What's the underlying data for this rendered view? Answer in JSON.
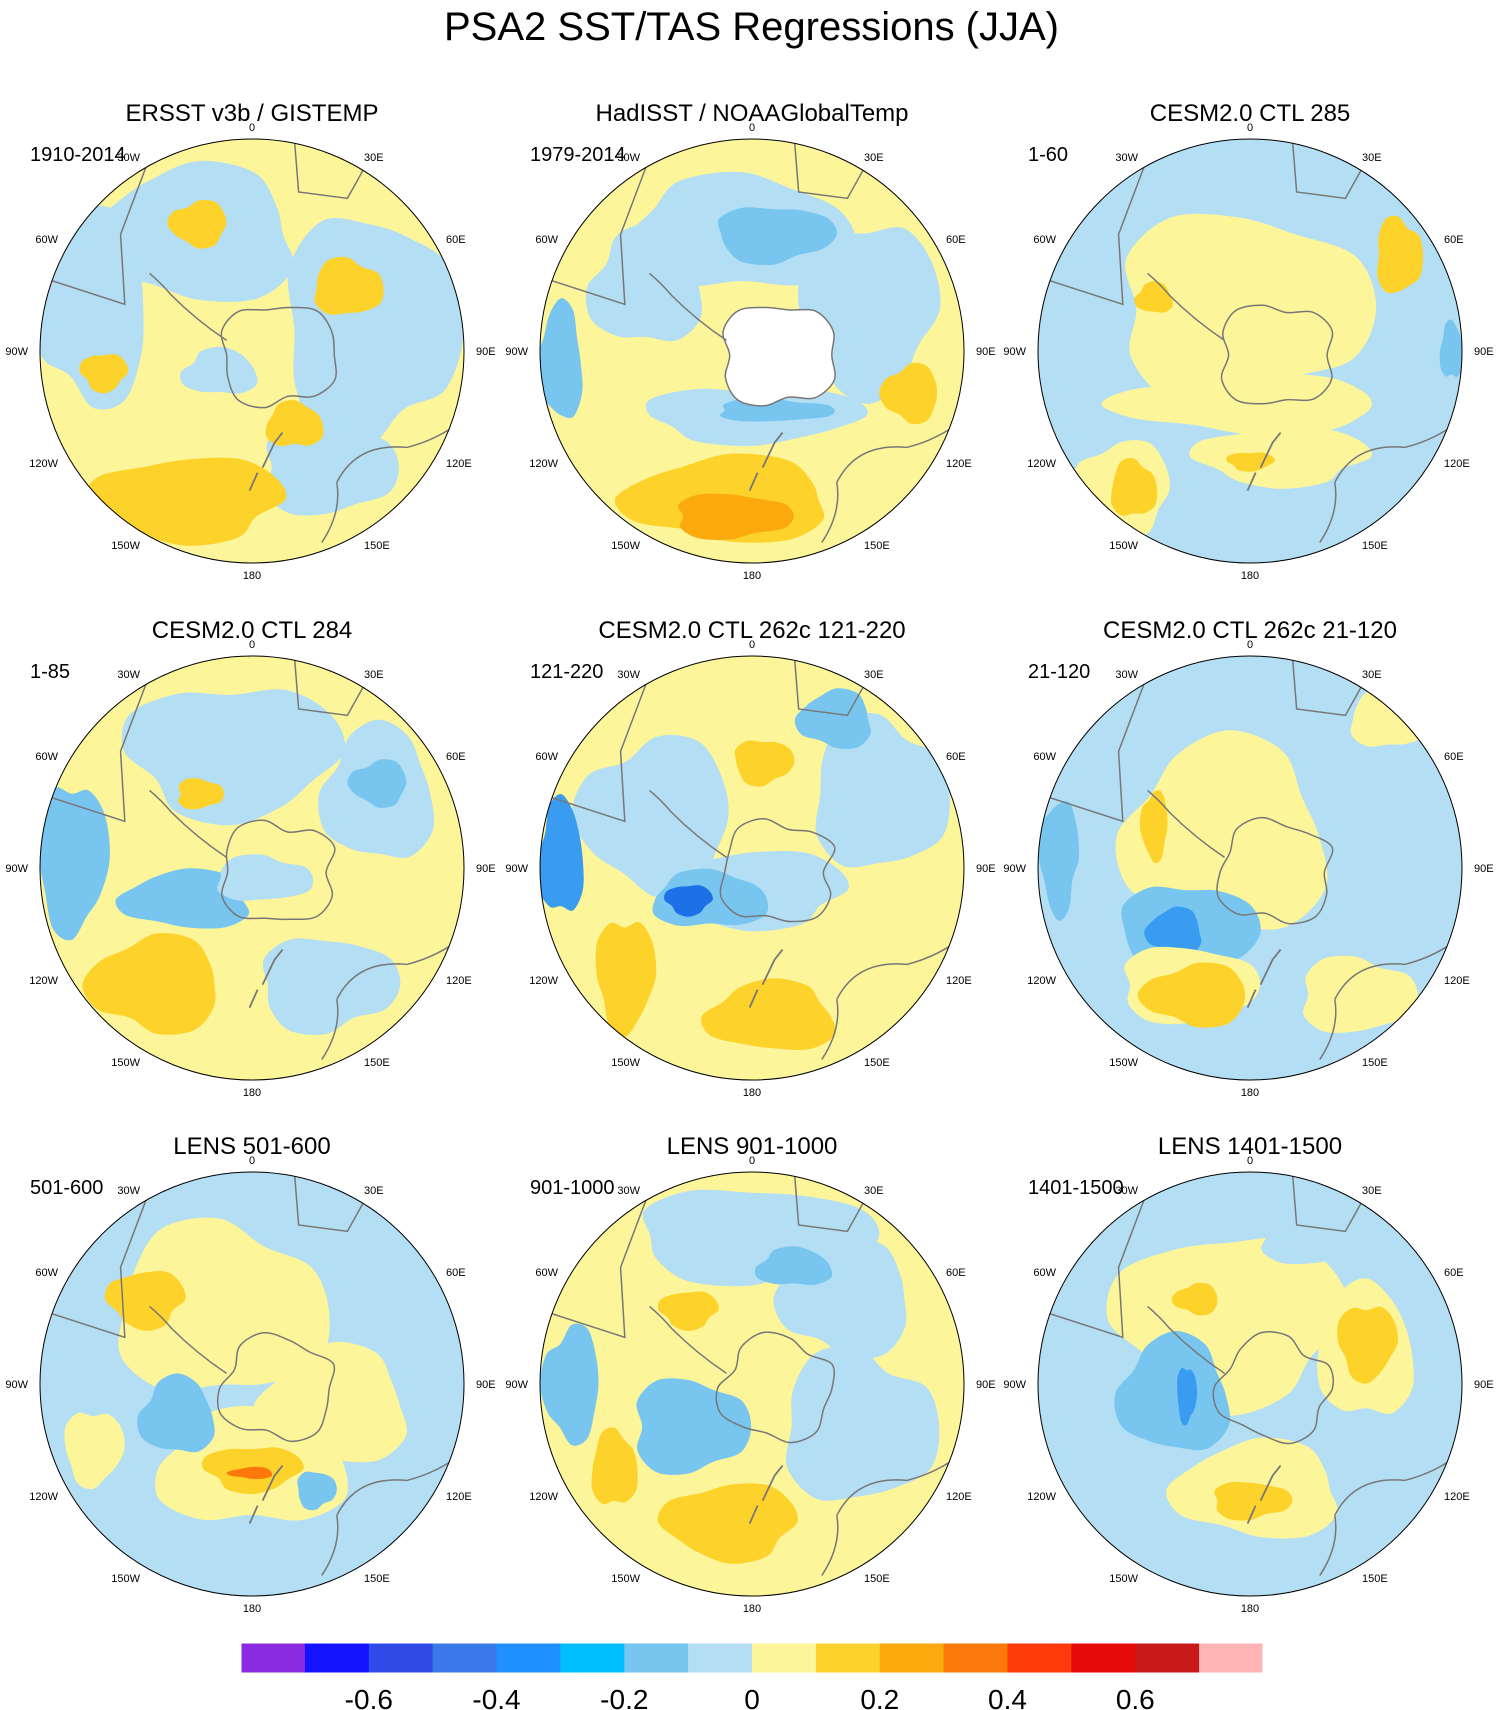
{
  "title": "PSA2 SST/TAS Regressions (JJA)",
  "panels": [
    {
      "title": "ERSST v3b / GISTEMP",
      "period": "1910-2014"
    },
    {
      "title": "HadISST / NOAAGlobalTemp",
      "period": "1979-2014"
    },
    {
      "title": "CESM2.0 CTL 285",
      "period": "1-60"
    },
    {
      "title": "CESM2.0 CTL 284",
      "period": "1-85"
    },
    {
      "title": "CESM2.0 CTL 262c 121-220",
      "period": "121-220"
    },
    {
      "title": "CESM2.0 CTL 262c 21-120",
      "period": "21-120"
    },
    {
      "title": "LENS 501-600",
      "period": "501-600"
    },
    {
      "title": "LENS 901-1000",
      "period": "901-1000"
    },
    {
      "title": "LENS 1401-1500",
      "period": "1401-1500"
    }
  ],
  "longitude_labels": [
    "0",
    "30E",
    "60E",
    "90E",
    "120E",
    "150E",
    "180",
    "150W",
    "120W",
    "90W",
    "60W",
    "30W"
  ],
  "colorbar": {
    "colors": [
      "#8a2be2",
      "#1414ff",
      "#2e4be8",
      "#3a7ae8",
      "#1e90ff",
      "#00bfff",
      "#78c6f0",
      "#b4def4",
      "#fdf59a",
      "#fdd22a",
      "#fca90d",
      "#fc780a",
      "#fc3a0a",
      "#e60a0a",
      "#c81a1a",
      "#fcb4b4"
    ],
    "tick_labels": [
      "-0.6",
      "-0.4",
      "-0.2",
      "0",
      "0.2",
      "0.4",
      "0.6"
    ],
    "tick_values": [
      -0.6,
      -0.4,
      -0.2,
      0,
      0.2,
      0.4,
      0.6
    ]
  },
  "colors": {
    "neg_light": "#b4def4",
    "neg_mid": "#78c6f0",
    "neg_strong": "#3a9cf0",
    "neg_deep": "#1e70e6",
    "pos_light": "#fdf59a",
    "pos_mid": "#fdd22a",
    "pos_strong": "#fca90d",
    "pos_deep": "#fc780a",
    "missing": "#ffffff",
    "coast": "#777777"
  }
}
